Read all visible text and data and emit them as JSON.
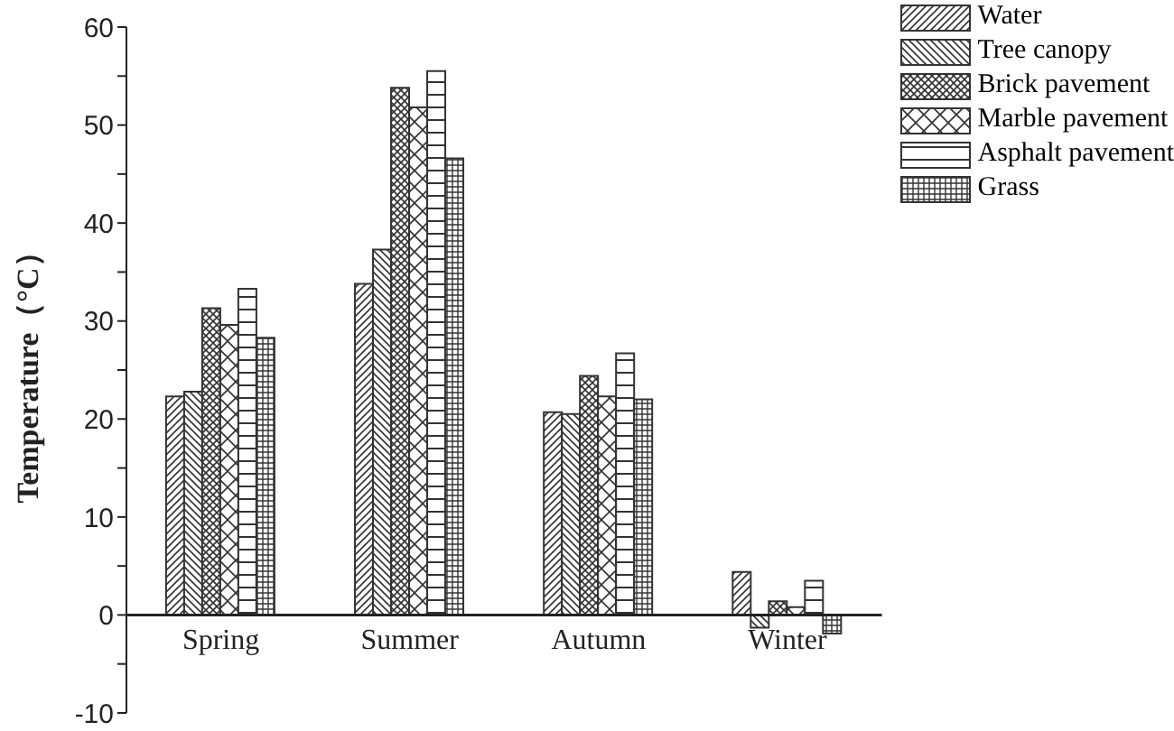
{
  "chart_data": {
    "type": "bar",
    "ylabel": "Temperature（°C）",
    "categories": [
      "Spring",
      "Summer",
      "Autumn",
      "Winter"
    ],
    "series": [
      {
        "name": "Water",
        "color": "#333333",
        "values": [
          22.3,
          33.8,
          20.7,
          4.4
        ]
      },
      {
        "name": "Tree canopy",
        "color": "#333333",
        "values": [
          22.8,
          37.3,
          20.5,
          -1.3
        ]
      },
      {
        "name": "Brick pavement",
        "color": "#333333",
        "values": [
          31.3,
          53.8,
          24.4,
          1.4
        ]
      },
      {
        "name": "Marble pavement",
        "color": "#333333",
        "values": [
          29.6,
          51.8,
          22.3,
          0.8
        ]
      },
      {
        "name": "Asphalt pavement",
        "color": "#333333",
        "values": [
          33.3,
          55.5,
          26.7,
          3.5
        ]
      },
      {
        "name": "Grass",
        "color": "#333333",
        "values": [
          28.3,
          46.6,
          22.0,
          -1.9
        ]
      }
    ],
    "ylim": [
      -10,
      60
    ],
    "yticks": [
      -10,
      {
        "value": -5,
        "label": null
      },
      0,
      {
        "value": 5,
        "label": null
      },
      10,
      {
        "value": 15,
        "label": null
      },
      20,
      {
        "value": 25,
        "label": null
      },
      30,
      {
        "value": 35,
        "label": null
      },
      40,
      {
        "value": 45,
        "label": null
      },
      50,
      {
        "value": 55,
        "label": null
      },
      60
    ],
    "grid": false,
    "legend": "top right"
  }
}
